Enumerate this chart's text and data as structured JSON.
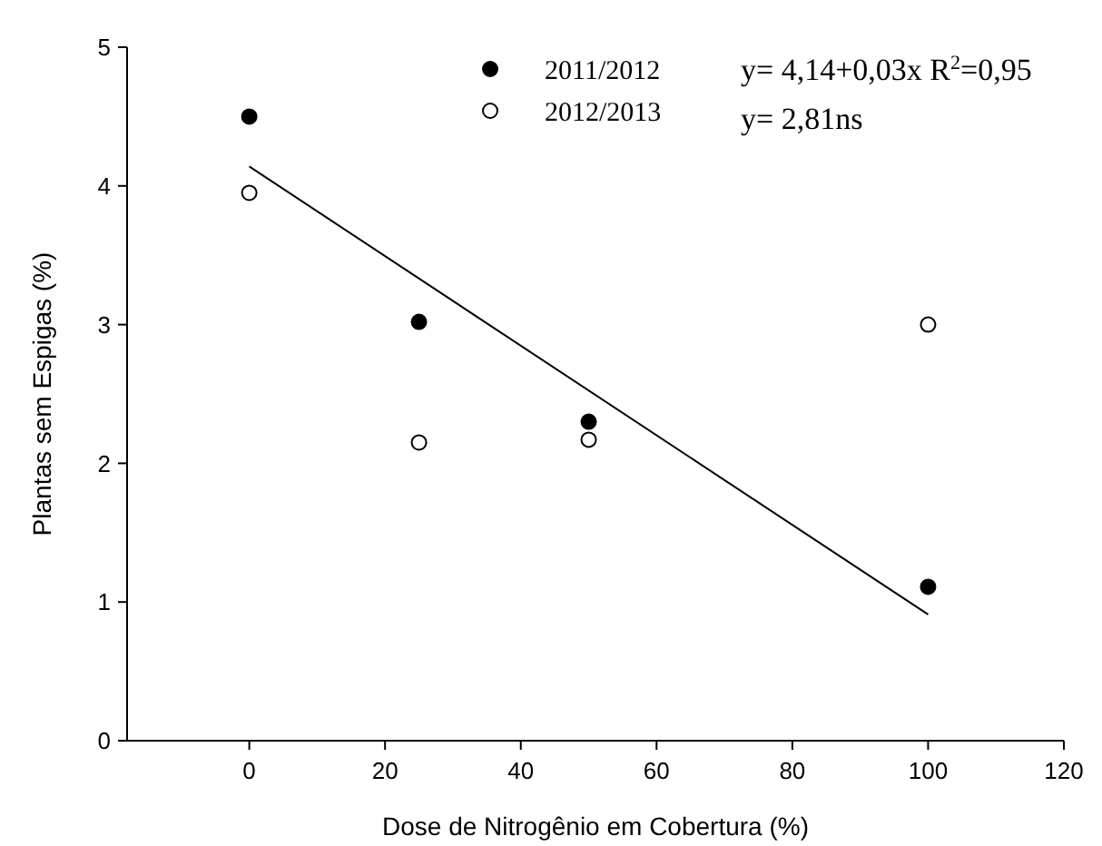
{
  "chart_data": {
    "type": "scatter",
    "xlabel": "Dose de Nitrogênio em Cobertura (%)",
    "ylabel": "Plantas sem Espigas (%)",
    "xlim": [
      -18,
      120
    ],
    "xticks": [
      0,
      20,
      40,
      60,
      80,
      100,
      120
    ],
    "ylim": [
      0,
      5
    ],
    "yticks": [
      0,
      1,
      2,
      3,
      4,
      5
    ],
    "series": [
      {
        "name": "2011/2012",
        "color": "#000000",
        "x": [
          0,
          25,
          50,
          100
        ],
        "values": [
          4.5,
          3.02,
          2.3,
          1.11
        ],
        "marker": "circle"
      },
      {
        "name": "2012/2013",
        "color": "#ffffff",
        "x": [
          0,
          25,
          50,
          100
        ],
        "values": [
          3.95,
          2.15,
          2.17,
          3.0
        ],
        "marker": "circle"
      },
      {
        "type": "line",
        "color": "#000000",
        "x": [
          0,
          100
        ],
        "values": [
          4.14,
          0.91
        ],
        "marker": "none"
      }
    ],
    "annotations": [
      "y= 4,14+0,03x R$^{2}$=0,95",
      "y= 2,81ns"
    ],
    "grid": false,
    "legend": "top"
  }
}
